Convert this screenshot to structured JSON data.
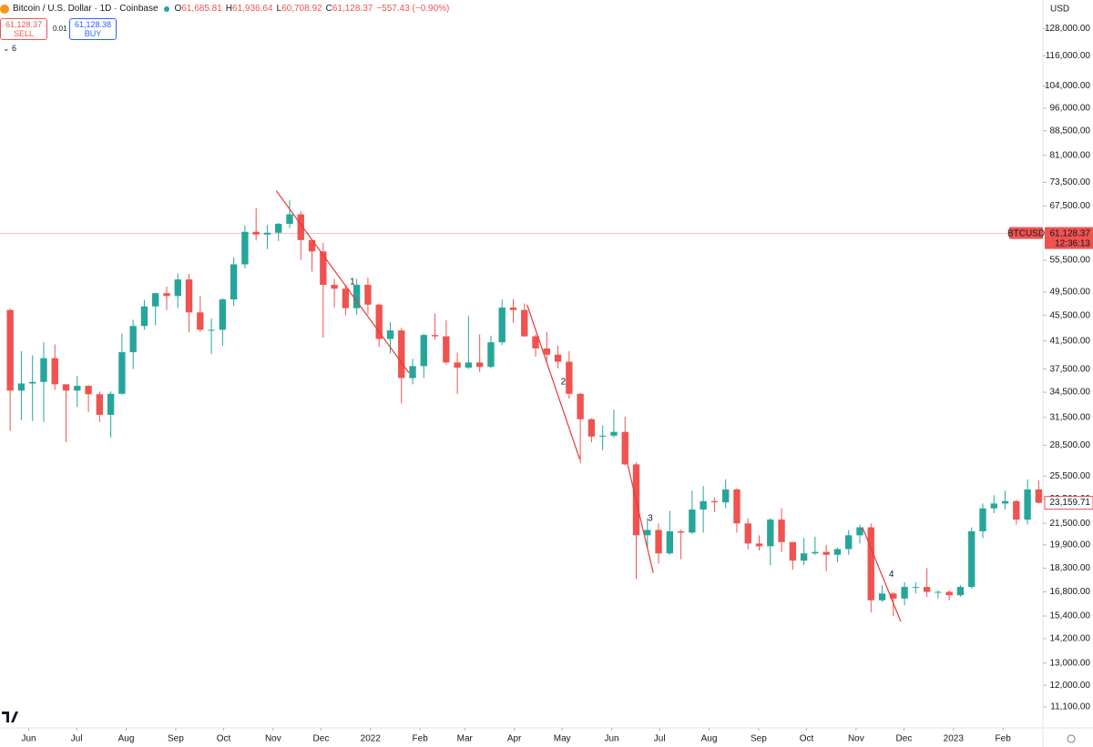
{
  "chart_data": {
    "type": "candlestick",
    "title": "Bitcoin / U.S. Dollar · 1D · Coinbase",
    "ohlc_header": {
      "o_prefix": "O",
      "open": "61,685.81",
      "h_prefix": "H",
      "high": "61,936.64",
      "l_prefix": "L",
      "low": "60,708.92",
      "c_prefix": "C",
      "close": "61,128.37",
      "change": "−557.43 (−0.90%)"
    },
    "trade": {
      "sell_price": "61,128.37",
      "sell": "SELL",
      "spread": "0.01",
      "buy_price": "61,128.38",
      "buy": "BUY"
    },
    "indicators_count": "6",
    "currency": "USD",
    "symbol_tag": "BTCUSD",
    "countdown": "12:36:13",
    "last_price": {
      "value": 61128.37,
      "label": "61,128.37"
    },
    "series_price": {
      "value": 23159.71,
      "label": "23,159.71"
    },
    "log_scale": true,
    "up_color": "#26a69a",
    "down_color": "#ef5350",
    "xlim": [
      "2021-05-14",
      "2023-02-26"
    ],
    "ylim": [
      10290,
      141800
    ],
    "x": [
      "2021-05-17",
      "2021-05-24",
      "2021-05-31",
      "2021-06-07",
      "2021-06-14",
      "2021-06-21",
      "2021-06-28",
      "2021-07-05",
      "2021-07-12",
      "2021-07-19",
      "2021-07-26",
      "2021-08-02",
      "2021-08-09",
      "2021-08-16",
      "2021-08-23",
      "2021-08-30",
      "2021-09-06",
      "2021-09-13",
      "2021-09-20",
      "2021-09-27",
      "2021-10-04",
      "2021-10-11",
      "2021-10-18",
      "2021-10-25",
      "2021-11-01",
      "2021-11-08",
      "2021-11-15",
      "2021-11-22",
      "2021-11-29",
      "2021-12-06",
      "2021-12-13",
      "2021-12-20",
      "2021-12-27",
      "2022-01-03",
      "2022-01-10",
      "2022-01-17",
      "2022-01-24",
      "2022-01-31",
      "2022-02-07",
      "2022-02-14",
      "2022-02-21",
      "2022-02-28",
      "2022-03-07",
      "2022-03-14",
      "2022-03-21",
      "2022-03-28",
      "2022-04-04",
      "2022-04-11",
      "2022-04-18",
      "2022-04-25",
      "2022-05-02",
      "2022-05-09",
      "2022-05-16",
      "2022-05-23",
      "2022-05-30",
      "2022-06-06",
      "2022-06-13",
      "2022-06-20",
      "2022-06-27",
      "2022-07-04",
      "2022-07-11",
      "2022-07-18",
      "2022-07-25",
      "2022-08-01",
      "2022-08-08",
      "2022-08-15",
      "2022-08-22",
      "2022-08-29",
      "2022-09-05",
      "2022-09-12",
      "2022-09-19",
      "2022-09-26",
      "2022-10-03",
      "2022-10-10",
      "2022-10-17",
      "2022-10-24",
      "2022-10-31",
      "2022-11-07",
      "2022-11-14",
      "2022-11-21",
      "2022-11-28",
      "2022-12-05",
      "2022-12-12",
      "2022-12-19",
      "2022-12-26",
      "2023-01-02",
      "2023-01-09",
      "2023-01-16",
      "2023-01-23",
      "2023-01-30",
      "2023-02-06",
      "2023-02-13",
      "2023-02-20"
    ],
    "open": [
      46400,
      34700,
      35600,
      35800,
      39000,
      35500,
      34700,
      35300,
      34250,
      31800,
      34300,
      39850,
      43800,
      47000,
      49300,
      48800,
      51800,
      46000,
      43200,
      43200,
      48200,
      54700,
      61500,
      60900,
      61300,
      63300,
      65500,
      59700,
      57300,
      50800,
      50100,
      46700,
      50800,
      47300,
      41800,
      43100,
      36300,
      37900,
      42400,
      42200,
      38400,
      37700,
      38400,
      37800,
      41300,
      46800,
      46400,
      42200,
      40400,
      39500,
      38500,
      34300,
      31300,
      29400,
      29500,
      29900,
      26600,
      20600,
      21000,
      19300,
      20900,
      20800,
      22600,
      23300,
      23200,
      24300,
      21500,
      20000,
      19800,
      21800,
      20100,
      18800,
      19300,
      19400,
      19200,
      19600,
      20600,
      21200,
      16300,
      16700,
      16400,
      17100,
      17100,
      16800,
      16800,
      16600,
      17100,
      20900,
      22700,
      23100,
      23300,
      21800,
      24300
    ],
    "high": [
      46600,
      40000,
      39400,
      41300,
      41000,
      35500,
      36600,
      35400,
      34600,
      34600,
      42600,
      44800,
      48100,
      49400,
      50500,
      52900,
      52800,
      48800,
      45000,
      48400,
      56100,
      62900,
      67000,
      63000,
      63500,
      69000,
      66300,
      59900,
      59100,
      51900,
      50800,
      51900,
      52100,
      47500,
      44400,
      43500,
      38900,
      42600,
      45800,
      44700,
      39800,
      45400,
      42500,
      42300,
      48200,
      48200,
      47500,
      42500,
      42900,
      40800,
      40000,
      34400,
      31400,
      30600,
      32400,
      31600,
      26800,
      21900,
      21500,
      22500,
      21000,
      24200,
      24600,
      23600,
      25200,
      24400,
      21900,
      20600,
      21900,
      22700,
      20100,
      20400,
      20500,
      19900,
      19700,
      21000,
      21400,
      21500,
      17200,
      16800,
      17400,
      17400,
      18300,
      16900,
      16900,
      17200,
      21200,
      23100,
      23800,
      24200,
      23400,
      25200,
      25100
    ],
    "low": [
      30000,
      31200,
      31100,
      31000,
      34800,
      28800,
      32700,
      32100,
      31000,
      29300,
      34200,
      37500,
      43200,
      43900,
      46400,
      46700,
      42800,
      42900,
      39600,
      40800,
      47100,
      53900,
      59600,
      57800,
      59500,
      62300,
      55600,
      53300,
      42000,
      46800,
      45500,
      45600,
      45700,
      40600,
      39700,
      33100,
      35500,
      36300,
      41700,
      38100,
      34300,
      37500,
      37100,
      37600,
      40900,
      44300,
      42100,
      39200,
      38600,
      37600,
      33700,
      26700,
      28800,
      28000,
      29300,
      26500,
      17600,
      19700,
      18600,
      19200,
      18900,
      20700,
      20800,
      22400,
      22700,
      20800,
      19600,
      19500,
      18500,
      19400,
      18200,
      18500,
      19200,
      18100,
      18700,
      19200,
      20000,
      15600,
      16200,
      15400,
      16000,
      16700,
      16500,
      16400,
      16300,
      16500,
      17000,
      20400,
      22300,
      22600,
      21400,
      21400,
      23100
    ],
    "close": [
      34700,
      35600,
      35800,
      39000,
      35500,
      34700,
      35300,
      34250,
      31800,
      34300,
      39850,
      43800,
      47000,
      49300,
      48800,
      51800,
      46000,
      43200,
      43200,
      48200,
      54700,
      61500,
      60900,
      61300,
      63300,
      65500,
      59700,
      57300,
      50800,
      50100,
      46700,
      50800,
      47300,
      41800,
      43100,
      36300,
      37900,
      42400,
      42200,
      38400,
      37700,
      38400,
      37800,
      41300,
      46800,
      46400,
      42200,
      40400,
      39500,
      38500,
      34300,
      31300,
      29400,
      29500,
      29900,
      26600,
      20600,
      21000,
      19300,
      20900,
      20800,
      22600,
      23300,
      23200,
      24300,
      21500,
      20000,
      19800,
      21800,
      20100,
      18800,
      19300,
      19400,
      19200,
      19600,
      20600,
      21200,
      16300,
      16700,
      16400,
      17100,
      17100,
      16800,
      16800,
      16600,
      17100,
      20900,
      22700,
      23100,
      23300,
      21800,
      24300,
      23160
    ],
    "yticks": [
      {
        "value": 128000,
        "label": "128,000.00"
      },
      {
        "value": 116000,
        "label": "116,000.00"
      },
      {
        "value": 104000,
        "label": "104,000.00"
      },
      {
        "value": 96000,
        "label": "96,000.00"
      },
      {
        "value": 88500,
        "label": "88,500.00"
      },
      {
        "value": 81000,
        "label": "81,000.00"
      },
      {
        "value": 73500,
        "label": "73,500.00"
      },
      {
        "value": 67500,
        "label": "67,500.00"
      },
      {
        "value": 55500,
        "label": "55,500.00"
      },
      {
        "value": 49500,
        "label": "49,500.00"
      },
      {
        "value": 45500,
        "label": "45,500.00"
      },
      {
        "value": 41500,
        "label": "41,500.00"
      },
      {
        "value": 37500,
        "label": "37,500.00"
      },
      {
        "value": 34500,
        "label": "34,500.00"
      },
      {
        "value": 31500,
        "label": "31,500.00"
      },
      {
        "value": 28500,
        "label": "28,500.00"
      },
      {
        "value": 25500,
        "label": "25,500.00"
      },
      {
        "value": 23500,
        "label": "23,500.00"
      },
      {
        "value": 21500,
        "label": "21,500.00"
      },
      {
        "value": 19900,
        "label": "19,900.00"
      },
      {
        "value": 18300,
        "label": "18,300.00"
      },
      {
        "value": 16800,
        "label": "16,800.00"
      },
      {
        "value": 15400,
        "label": "15,400.00"
      },
      {
        "value": 14200,
        "label": "14,200.00"
      },
      {
        "value": 13000,
        "label": "13,000.00"
      },
      {
        "value": 12000,
        "label": "12,000.00"
      },
      {
        "value": 11100,
        "label": "11,100.00"
      }
    ],
    "xticks": [
      {
        "value": "2021-06-01",
        "label": "Jun"
      },
      {
        "value": "2021-07-01",
        "label": "Jul"
      },
      {
        "value": "2021-08-01",
        "label": "Aug"
      },
      {
        "value": "2021-09-01",
        "label": "Sep"
      },
      {
        "value": "2021-10-01",
        "label": "Oct"
      },
      {
        "value": "2021-11-01",
        "label": "Nov"
      },
      {
        "value": "2021-12-01",
        "label": "Dec"
      },
      {
        "value": "2022-01-01",
        "label": "2022"
      },
      {
        "value": "2022-02-01",
        "label": "Feb"
      },
      {
        "value": "2022-03-01",
        "label": "Mar"
      },
      {
        "value": "2022-04-01",
        "label": "Apr"
      },
      {
        "value": "2022-05-01",
        "label": "May"
      },
      {
        "value": "2022-06-01",
        "label": "Jun"
      },
      {
        "value": "2022-07-01",
        "label": "Jul"
      },
      {
        "value": "2022-08-01",
        "label": "Aug"
      },
      {
        "value": "2022-09-01",
        "label": "Sep"
      },
      {
        "value": "2022-10-01",
        "label": "Oct"
      },
      {
        "value": "2022-11-01",
        "label": "Nov"
      },
      {
        "value": "2022-12-01",
        "label": "Dec"
      },
      {
        "value": "2023-01-01",
        "label": "2023"
      },
      {
        "value": "2023-02-01",
        "label": "Feb"
      }
    ],
    "trendlines": [
      {
        "label": "1",
        "color": "#e53935",
        "x": [
          "2021-11-03",
          "2022-01-25"
        ],
        "y": [
          71300,
          37000
        ]
      },
      {
        "label": "2",
        "color": "#e53935",
        "x": [
          "2022-04-09",
          "2022-05-12"
        ],
        "y": [
          47300,
          27100
        ]
      },
      {
        "label": "3",
        "color": "#e53935",
        "x": [
          "2022-06-11",
          "2022-06-27"
        ],
        "y": [
          26600,
          18000
        ]
      },
      {
        "label": "4",
        "color": "#e53935",
        "x": [
          "2022-11-05",
          "2022-11-29"
        ],
        "y": [
          21200,
          15100
        ]
      }
    ]
  }
}
